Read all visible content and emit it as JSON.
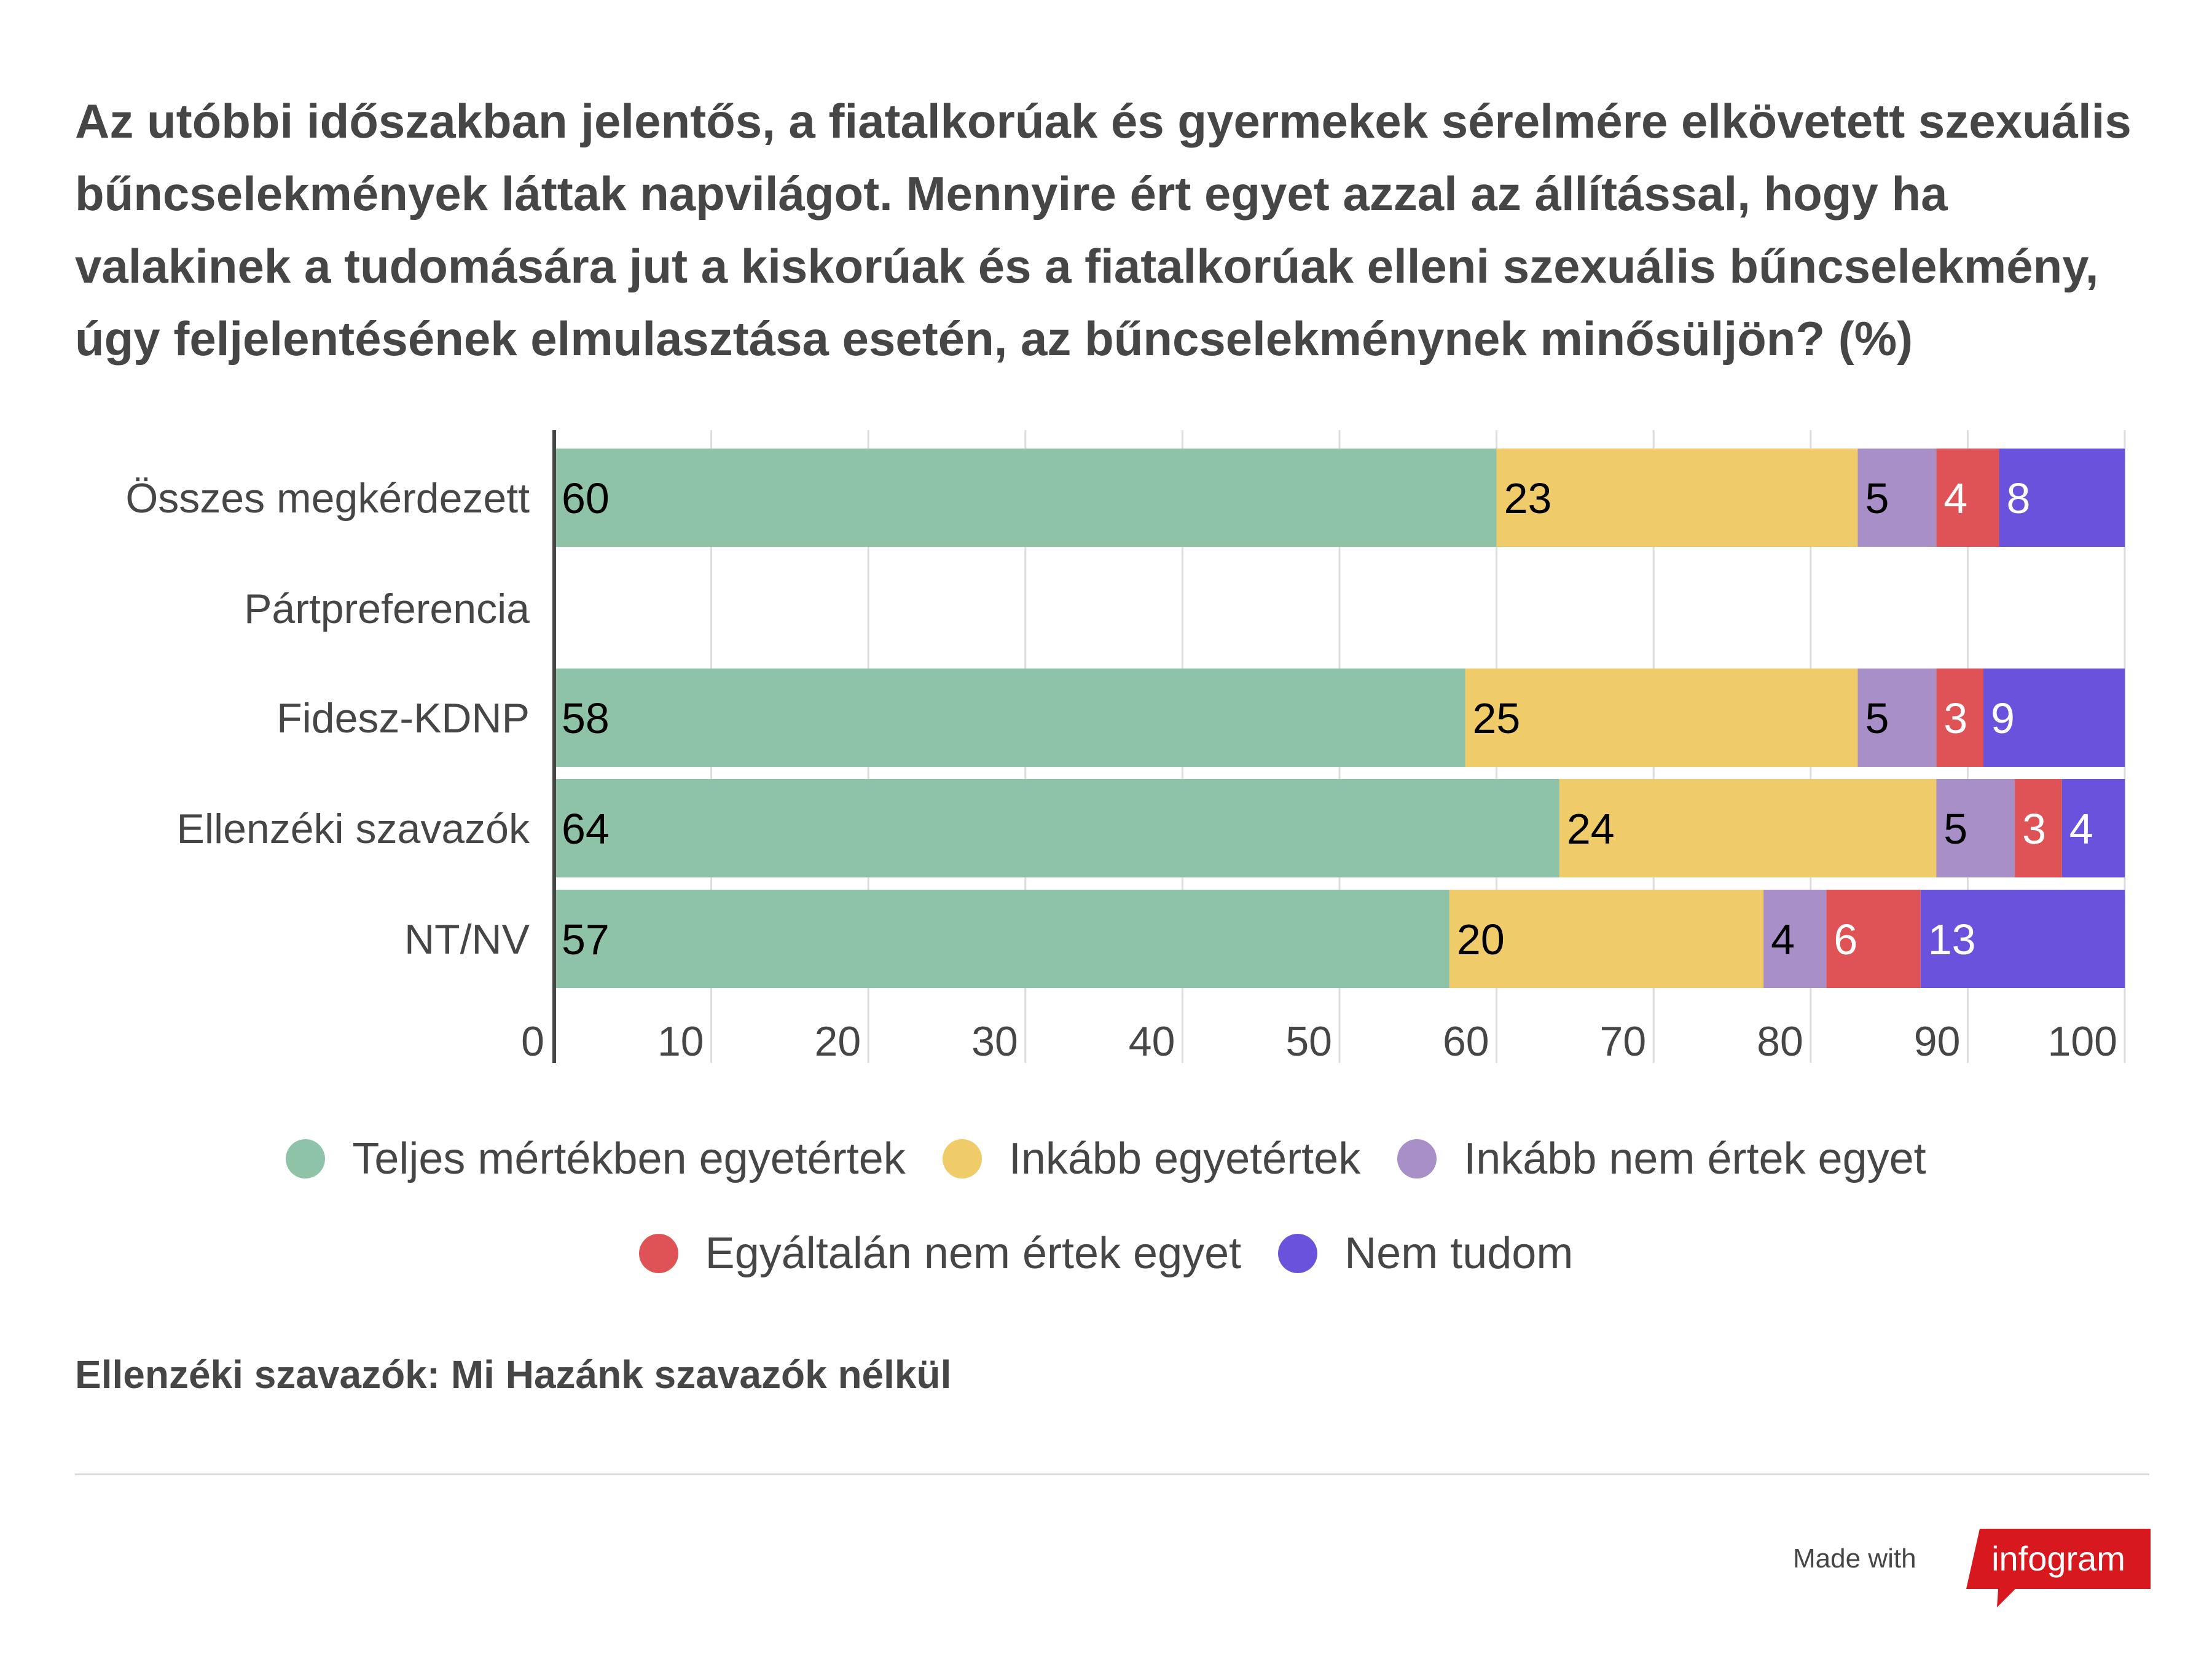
{
  "chart_data": {
    "type": "bar",
    "orientation": "horizontal",
    "stacked": true,
    "title": "Az utóbbi időszakban jelentős, a fiatalkorúak és gyermekek sérelmére elkövetett szexuális bűncselekmények láttak napvilágot. Mennyire ért egyet azzal az állítással, hogy ha valakinek a tudomására jut a kiskorúak és a fiatalkorúak elleni szexuális bűncselekmény, úgy feljelentésének elmulasztása esetén, az bűncselekménynek minősüljön? (%)",
    "categories": [
      "Összes megkérdezett",
      "Pártpreferencia",
      "Fidesz-KDNP",
      "Ellenzéki szavazók",
      "NT/NV"
    ],
    "series": [
      {
        "name": "Teljes mértékben egyetértek",
        "color": "#8fc3a7",
        "label_color": "#000000",
        "values": [
          60,
          null,
          58,
          64,
          57
        ]
      },
      {
        "name": "Inkább egyetértek",
        "color": "#f0cb69",
        "label_color": "#000000",
        "values": [
          23,
          null,
          25,
          24,
          20
        ]
      },
      {
        "name": "Inkább nem értek egyet",
        "color": "#a88fc8",
        "label_color": "#000000",
        "values": [
          5,
          null,
          5,
          5,
          4
        ]
      },
      {
        "name": "Egyáltalán nem értek egyet",
        "color": "#df5356",
        "label_color": "#ffffff",
        "values": [
          4,
          null,
          3,
          3,
          6
        ]
      },
      {
        "name": "Nem tudom",
        "color": "#6b52dc",
        "label_color": "#ffffff",
        "values": [
          8,
          null,
          9,
          4,
          13
        ]
      }
    ],
    "xlim": [
      0,
      100
    ],
    "xticks": [
      0,
      10,
      20,
      30,
      40,
      50,
      60,
      70,
      80,
      90,
      100
    ],
    "grid": true,
    "legend_position": "bottom"
  },
  "footnote": "Ellenzéki szavazók: Mi Hazánk szavazók nélkül",
  "branding": {
    "made_with": "Made with",
    "logo_text": "infogram",
    "logo_color": "#d7181f"
  }
}
